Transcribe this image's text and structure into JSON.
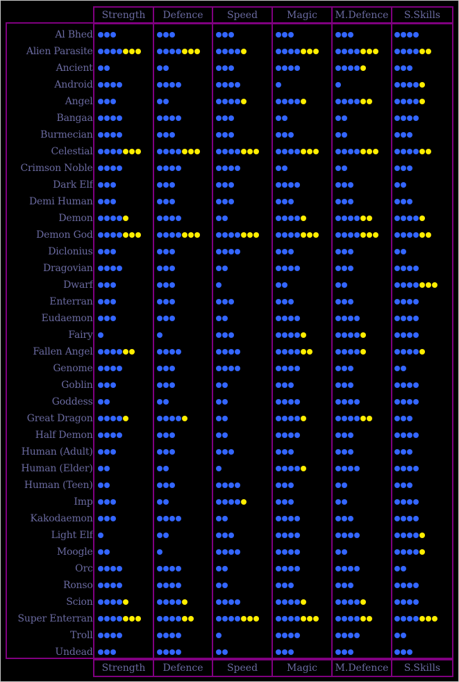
{
  "columns": [
    "Strength",
    "Defence",
    "Speed",
    "Magic",
    "M.Defence",
    "S.Skills"
  ],
  "colors": {
    "border": "#800080",
    "text": "#6a6aa0",
    "blue_dot": "#3366ff",
    "yellow_dot": "#ffee00",
    "background": "#000000"
  },
  "rows": [
    {
      "name": "Al Bhed",
      "stats": [
        [
          3,
          0
        ],
        [
          3,
          0
        ],
        [
          3,
          0
        ],
        [
          3,
          0
        ],
        [
          3,
          0
        ],
        [
          4,
          0
        ]
      ]
    },
    {
      "name": "Alien Parasite",
      "stats": [
        [
          4,
          3
        ],
        [
          4,
          3
        ],
        [
          4,
          1
        ],
        [
          4,
          3
        ],
        [
          4,
          3
        ],
        [
          4,
          2
        ]
      ]
    },
    {
      "name": "Ancient",
      "stats": [
        [
          2,
          0
        ],
        [
          2,
          0
        ],
        [
          3,
          0
        ],
        [
          4,
          0
        ],
        [
          4,
          1
        ],
        [
          3,
          0
        ]
      ]
    },
    {
      "name": "Android",
      "stats": [
        [
          4,
          0
        ],
        [
          4,
          0
        ],
        [
          4,
          0
        ],
        [
          1,
          0
        ],
        [
          1,
          0
        ],
        [
          4,
          1
        ]
      ]
    },
    {
      "name": "Angel",
      "stats": [
        [
          3,
          0
        ],
        [
          2,
          0
        ],
        [
          4,
          1
        ],
        [
          4,
          1
        ],
        [
          4,
          2
        ],
        [
          4,
          1
        ]
      ]
    },
    {
      "name": "Bangaa",
      "stats": [
        [
          4,
          0
        ],
        [
          4,
          0
        ],
        [
          3,
          0
        ],
        [
          2,
          0
        ],
        [
          2,
          0
        ],
        [
          4,
          0
        ]
      ]
    },
    {
      "name": "Burmecian",
      "stats": [
        [
          4,
          0
        ],
        [
          3,
          0
        ],
        [
          3,
          0
        ],
        [
          3,
          0
        ],
        [
          2,
          0
        ],
        [
          3,
          0
        ]
      ]
    },
    {
      "name": "Celestial",
      "stats": [
        [
          4,
          3
        ],
        [
          4,
          3
        ],
        [
          4,
          3
        ],
        [
          4,
          3
        ],
        [
          4,
          3
        ],
        [
          4,
          2
        ]
      ]
    },
    {
      "name": "Crimson Noble",
      "stats": [
        [
          4,
          0
        ],
        [
          4,
          0
        ],
        [
          4,
          0
        ],
        [
          2,
          0
        ],
        [
          2,
          0
        ],
        [
          3,
          0
        ]
      ]
    },
    {
      "name": "Dark Elf",
      "stats": [
        [
          3,
          0
        ],
        [
          3,
          0
        ],
        [
          3,
          0
        ],
        [
          4,
          0
        ],
        [
          3,
          0
        ],
        [
          2,
          0
        ]
      ]
    },
    {
      "name": "Demi Human",
      "stats": [
        [
          3,
          0
        ],
        [
          3,
          0
        ],
        [
          3,
          0
        ],
        [
          3,
          0
        ],
        [
          3,
          0
        ],
        [
          3,
          0
        ]
      ]
    },
    {
      "name": "Demon",
      "stats": [
        [
          4,
          1
        ],
        [
          4,
          0
        ],
        [
          2,
          0
        ],
        [
          4,
          1
        ],
        [
          4,
          2
        ],
        [
          4,
          1
        ]
      ]
    },
    {
      "name": "Demon God",
      "stats": [
        [
          4,
          3
        ],
        [
          4,
          3
        ],
        [
          4,
          3
        ],
        [
          4,
          3
        ],
        [
          4,
          3
        ],
        [
          4,
          2
        ]
      ]
    },
    {
      "name": "Diclonius",
      "stats": [
        [
          3,
          0
        ],
        [
          3,
          0
        ],
        [
          4,
          0
        ],
        [
          3,
          0
        ],
        [
          3,
          0
        ],
        [
          2,
          0
        ]
      ]
    },
    {
      "name": "Dragovian",
      "stats": [
        [
          4,
          0
        ],
        [
          3,
          0
        ],
        [
          2,
          0
        ],
        [
          4,
          0
        ],
        [
          3,
          0
        ],
        [
          4,
          0
        ]
      ]
    },
    {
      "name": "Dwarf",
      "stats": [
        [
          3,
          0
        ],
        [
          3,
          0
        ],
        [
          1,
          0
        ],
        [
          2,
          0
        ],
        [
          2,
          0
        ],
        [
          4,
          3
        ]
      ]
    },
    {
      "name": "Enterran",
      "stats": [
        [
          3,
          0
        ],
        [
          3,
          0
        ],
        [
          3,
          0
        ],
        [
          3,
          0
        ],
        [
          3,
          0
        ],
        [
          4,
          0
        ]
      ]
    },
    {
      "name": "Eudaemon",
      "stats": [
        [
          3,
          0
        ],
        [
          3,
          0
        ],
        [
          2,
          0
        ],
        [
          4,
          0
        ],
        [
          4,
          0
        ],
        [
          4,
          0
        ]
      ]
    },
    {
      "name": "Fairy",
      "stats": [
        [
          1,
          0
        ],
        [
          1,
          0
        ],
        [
          3,
          0
        ],
        [
          4,
          1
        ],
        [
          4,
          1
        ],
        [
          4,
          0
        ]
      ]
    },
    {
      "name": "Fallen Angel",
      "stats": [
        [
          4,
          2
        ],
        [
          4,
          0
        ],
        [
          4,
          0
        ],
        [
          4,
          2
        ],
        [
          4,
          1
        ],
        [
          4,
          1
        ]
      ]
    },
    {
      "name": "Genome",
      "stats": [
        [
          4,
          0
        ],
        [
          3,
          0
        ],
        [
          4,
          0
        ],
        [
          4,
          0
        ],
        [
          3,
          0
        ],
        [
          2,
          0
        ]
      ]
    },
    {
      "name": "Goblin",
      "stats": [
        [
          3,
          0
        ],
        [
          3,
          0
        ],
        [
          2,
          0
        ],
        [
          3,
          0
        ],
        [
          3,
          0
        ],
        [
          4,
          0
        ]
      ]
    },
    {
      "name": "Goddess",
      "stats": [
        [
          2,
          0
        ],
        [
          2,
          0
        ],
        [
          2,
          0
        ],
        [
          4,
          0
        ],
        [
          4,
          0
        ],
        [
          4,
          0
        ]
      ]
    },
    {
      "name": "Great Dragon",
      "stats": [
        [
          4,
          1
        ],
        [
          4,
          1
        ],
        [
          2,
          0
        ],
        [
          4,
          1
        ],
        [
          4,
          2
        ],
        [
          3,
          0
        ]
      ]
    },
    {
      "name": "Half Demon",
      "stats": [
        [
          4,
          0
        ],
        [
          3,
          0
        ],
        [
          2,
          0
        ],
        [
          4,
          0
        ],
        [
          3,
          0
        ],
        [
          4,
          0
        ]
      ]
    },
    {
      "name": "Human (Adult)",
      "stats": [
        [
          3,
          0
        ],
        [
          3,
          0
        ],
        [
          3,
          0
        ],
        [
          3,
          0
        ],
        [
          3,
          0
        ],
        [
          3,
          0
        ]
      ]
    },
    {
      "name": "Human (Elder)",
      "stats": [
        [
          2,
          0
        ],
        [
          2,
          0
        ],
        [
          1,
          0
        ],
        [
          4,
          1
        ],
        [
          4,
          0
        ],
        [
          4,
          0
        ]
      ]
    },
    {
      "name": "Human (Teen)",
      "stats": [
        [
          2,
          0
        ],
        [
          3,
          0
        ],
        [
          4,
          0
        ],
        [
          3,
          0
        ],
        [
          2,
          0
        ],
        [
          3,
          0
        ]
      ]
    },
    {
      "name": "Imp",
      "stats": [
        [
          3,
          0
        ],
        [
          2,
          0
        ],
        [
          4,
          1
        ],
        [
          3,
          0
        ],
        [
          2,
          0
        ],
        [
          4,
          0
        ]
      ]
    },
    {
      "name": "Kakodaemon",
      "stats": [
        [
          3,
          0
        ],
        [
          4,
          0
        ],
        [
          2,
          0
        ],
        [
          4,
          0
        ],
        [
          3,
          0
        ],
        [
          4,
          0
        ]
      ]
    },
    {
      "name": "Light Elf",
      "stats": [
        [
          1,
          0
        ],
        [
          2,
          0
        ],
        [
          3,
          0
        ],
        [
          4,
          0
        ],
        [
          4,
          0
        ],
        [
          4,
          1
        ]
      ]
    },
    {
      "name": "Moogle",
      "stats": [
        [
          2,
          0
        ],
        [
          1,
          0
        ],
        [
          4,
          0
        ],
        [
          4,
          0
        ],
        [
          2,
          0
        ],
        [
          4,
          1
        ]
      ]
    },
    {
      "name": "Orc",
      "stats": [
        [
          4,
          0
        ],
        [
          4,
          0
        ],
        [
          2,
          0
        ],
        [
          4,
          0
        ],
        [
          4,
          0
        ],
        [
          2,
          0
        ]
      ]
    },
    {
      "name": "Ronso",
      "stats": [
        [
          4,
          0
        ],
        [
          4,
          0
        ],
        [
          2,
          0
        ],
        [
          3,
          0
        ],
        [
          3,
          0
        ],
        [
          4,
          0
        ]
      ]
    },
    {
      "name": "Scion",
      "stats": [
        [
          4,
          1
        ],
        [
          4,
          1
        ],
        [
          4,
          0
        ],
        [
          4,
          1
        ],
        [
          4,
          1
        ],
        [
          4,
          0
        ]
      ]
    },
    {
      "name": "Super Enterran",
      "stats": [
        [
          4,
          3
        ],
        [
          4,
          2
        ],
        [
          4,
          3
        ],
        [
          4,
          3
        ],
        [
          4,
          2
        ],
        [
          4,
          3
        ]
      ]
    },
    {
      "name": "Troll",
      "stats": [
        [
          4,
          0
        ],
        [
          4,
          0
        ],
        [
          1,
          0
        ],
        [
          4,
          0
        ],
        [
          4,
          0
        ],
        [
          2,
          0
        ]
      ]
    },
    {
      "name": "Undead",
      "stats": [
        [
          3,
          0
        ],
        [
          4,
          0
        ],
        [
          2,
          0
        ],
        [
          3,
          0
        ],
        [
          3,
          0
        ],
        [
          3,
          0
        ]
      ]
    }
  ]
}
